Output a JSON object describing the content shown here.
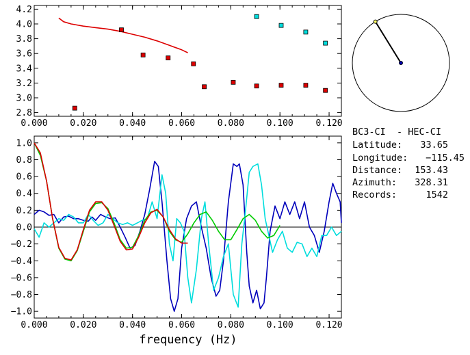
{
  "colors": {
    "red": "#dd0000",
    "blue": "#0000bb",
    "cyan": "#00dddd",
    "green": "#00cc00",
    "marker_red": "#dd0000",
    "marker_cyan": "#00dddd"
  },
  "info": {
    "title": "BC3-CI  - HEC-CI",
    "latitude_label": "Latitude:",
    "latitude_value": "33.65",
    "longitude_label": "Longitude:",
    "longitude_value": "−115.45",
    "distance_label": "Distance:",
    "distance_value": "153.43",
    "azimuth_label": "Azimuth:",
    "azimuth_value": "328.31",
    "records_label": "Records:",
    "records_value": "1542"
  },
  "compass": {
    "azimuth_deg": 328.31
  },
  "chart_data": [
    {
      "type": "scatter",
      "xlim": [
        0.0,
        0.125
      ],
      "ylim": [
        2.75,
        4.25
      ],
      "xticks": [
        "0.000",
        "0.020",
        "0.040",
        "0.060",
        "0.080",
        "0.100",
        "0.120"
      ],
      "xtick_values": [
        0.0,
        0.02,
        0.04,
        0.06,
        0.08,
        0.1,
        0.12
      ],
      "yticks": [
        "2.8",
        "3.0",
        "3.2",
        "3.4",
        "3.6",
        "3.8",
        "4.0",
        "4.2"
      ],
      "ytick_values": [
        2.8,
        3.0,
        3.2,
        3.4,
        3.6,
        3.8,
        4.0,
        4.2
      ],
      "line": {
        "color": "red",
        "x": [
          0.01,
          0.012,
          0.015,
          0.02,
          0.025,
          0.03,
          0.035,
          0.04,
          0.045,
          0.05,
          0.055,
          0.06,
          0.0625
        ],
        "y": [
          4.08,
          4.03,
          4.0,
          3.97,
          3.95,
          3.93,
          3.9,
          3.86,
          3.82,
          3.77,
          3.71,
          3.65,
          3.61
        ]
      },
      "red_points": {
        "x": [
          0.0165,
          0.0355,
          0.0443,
          0.0545,
          0.0648,
          0.0692,
          0.081,
          0.0905,
          0.1005,
          0.1105,
          0.1185
        ],
        "y": [
          2.86,
          3.92,
          3.58,
          3.54,
          3.46,
          3.15,
          3.21,
          3.16,
          3.17,
          3.17,
          3.1
        ]
      },
      "cyan_points": {
        "x": [
          0.0905,
          0.1005,
          0.1105,
          0.1185
        ],
        "y": [
          4.1,
          3.98,
          3.89,
          3.74
        ]
      }
    },
    {
      "type": "line",
      "xlim": [
        0.0,
        0.125
      ],
      "ylim": [
        -1.08,
        1.08
      ],
      "xlabel": "frequency (Hz)",
      "xticks": [
        "0.000",
        "0.020",
        "0.040",
        "0.060",
        "0.080",
        "0.100",
        "0.120"
      ],
      "xtick_values": [
        0.0,
        0.02,
        0.04,
        0.06,
        0.08,
        0.1,
        0.12
      ],
      "yticks": [
        "1.0",
        "0.8",
        "0.6",
        "0.4",
        "0.2",
        "0.0",
        "−0.2",
        "−0.4",
        "−0.6",
        "−0.8",
        "−1.0"
      ],
      "ytick_values": [
        1.0,
        0.8,
        0.6,
        0.4,
        0.2,
        0.0,
        -0.2,
        -0.4,
        -0.6,
        -0.8,
        -1.0
      ],
      "series": [
        {
          "color": "blue",
          "x": [
            0.0,
            0.002,
            0.004,
            0.006,
            0.008,
            0.01,
            0.012,
            0.014,
            0.016,
            0.018,
            0.02,
            0.022,
            0.0235,
            0.025,
            0.027,
            0.029,
            0.031,
            0.033,
            0.035,
            0.037,
            0.039,
            0.041,
            0.043,
            0.045,
            0.047,
            0.049,
            0.0505,
            0.052,
            0.054,
            0.0555,
            0.057,
            0.0585,
            0.06,
            0.062,
            0.064,
            0.066,
            0.068,
            0.07,
            0.072,
            0.074,
            0.0755,
            0.077,
            0.079,
            0.081,
            0.0825,
            0.0835,
            0.085,
            0.0865,
            0.0875,
            0.089,
            0.0905,
            0.092,
            0.0935,
            0.0945,
            0.096,
            0.098,
            0.1,
            0.102,
            0.104,
            0.106,
            0.108,
            0.11,
            0.112,
            0.114,
            0.116,
            0.118,
            0.12,
            0.1215,
            0.123,
            0.1245,
            0.125
          ],
          "y": [
            0.15,
            0.2,
            0.18,
            0.14,
            0.15,
            0.05,
            0.12,
            0.13,
            0.1,
            0.1,
            0.08,
            0.07,
            0.12,
            0.08,
            0.15,
            0.12,
            0.1,
            0.11,
            0.0,
            -0.12,
            -0.25,
            -0.22,
            -0.05,
            0.15,
            0.45,
            0.78,
            0.72,
            0.3,
            -0.4,
            -0.85,
            -1.0,
            -0.85,
            -0.25,
            0.1,
            0.25,
            0.3,
            0.0,
            -0.25,
            -0.6,
            -0.82,
            -0.75,
            -0.4,
            0.3,
            0.75,
            0.72,
            0.75,
            0.5,
            -0.3,
            -0.7,
            -0.9,
            -0.75,
            -0.97,
            -0.9,
            -0.6,
            -0.05,
            0.25,
            0.1,
            0.3,
            0.15,
            0.3,
            0.1,
            0.3,
            0.0,
            -0.1,
            -0.3,
            -0.05,
            0.3,
            0.52,
            0.4,
            0.3,
            0.05
          ]
        },
        {
          "color": "cyan",
          "x": [
            0.0,
            0.002,
            0.004,
            0.006,
            0.008,
            0.01,
            0.012,
            0.014,
            0.016,
            0.018,
            0.02,
            0.022,
            0.024,
            0.026,
            0.028,
            0.03,
            0.032,
            0.034,
            0.036,
            0.038,
            0.04,
            0.042,
            0.044,
            0.046,
            0.048,
            0.05,
            0.052,
            0.0535,
            0.055,
            0.0565,
            0.058,
            0.0595,
            0.061,
            0.0625,
            0.064,
            0.066,
            0.068,
            0.0695,
            0.071,
            0.073,
            0.075,
            0.077,
            0.079,
            0.081,
            0.083,
            0.0845,
            0.086,
            0.0875,
            0.089,
            0.091,
            0.0925,
            0.094,
            0.0955,
            0.097,
            0.099,
            0.101,
            0.103,
            0.105,
            0.107,
            0.109,
            0.111,
            0.113,
            0.115,
            0.117,
            0.119,
            0.121,
            0.123,
            0.125
          ],
          "y": [
            -0.02,
            -0.12,
            0.05,
            0.0,
            0.05,
            0.1,
            0.08,
            0.15,
            0.12,
            0.05,
            0.05,
            0.15,
            0.08,
            0.02,
            0.05,
            0.15,
            0.1,
            0.05,
            0.03,
            0.05,
            0.02,
            0.05,
            0.08,
            0.1,
            0.3,
            0.1,
            0.62,
            0.4,
            -0.2,
            -0.4,
            0.1,
            0.05,
            -0.05,
            -0.6,
            -0.9,
            -0.5,
            0.1,
            0.3,
            -0.2,
            -0.75,
            -0.6,
            -0.35,
            -0.2,
            -0.8,
            -0.95,
            -0.2,
            0.2,
            0.65,
            0.72,
            0.75,
            0.5,
            0.1,
            -0.1,
            -0.3,
            -0.15,
            -0.05,
            -0.25,
            -0.3,
            -0.18,
            -0.2,
            -0.35,
            -0.25,
            -0.35,
            -0.1,
            -0.1,
            0.0,
            -0.1,
            -0.05
          ]
        },
        {
          "color": "green",
          "x": [
            0.0,
            0.0025,
            0.005,
            0.0075,
            0.01,
            0.0125,
            0.015,
            0.0175,
            0.02,
            0.0225,
            0.025,
            0.0275,
            0.03,
            0.0325,
            0.035,
            0.0375,
            0.04,
            0.0425,
            0.045,
            0.0475,
            0.05,
            0.0525,
            0.055,
            0.0575,
            0.06,
            0.0625,
            0.065,
            0.0675,
            0.07,
            0.0725,
            0.075,
            0.0775,
            0.08,
            0.0825,
            0.085,
            0.0875,
            0.09,
            0.0925,
            0.095,
            0.0975,
            0.1
          ],
          "y": [
            1.0,
            0.85,
            0.55,
            0.1,
            -0.25,
            -0.38,
            -0.4,
            -0.28,
            -0.05,
            0.18,
            0.28,
            0.29,
            0.22,
            0.05,
            -0.15,
            -0.25,
            -0.24,
            -0.1,
            0.08,
            0.18,
            0.2,
            0.12,
            -0.05,
            -0.15,
            -0.18,
            -0.08,
            0.05,
            0.15,
            0.18,
            0.08,
            -0.05,
            -0.15,
            -0.15,
            -0.03,
            0.1,
            0.15,
            0.08,
            -0.05,
            -0.13,
            -0.1,
            0.02
          ]
        },
        {
          "color": "red",
          "x": [
            0.0,
            0.0025,
            0.005,
            0.0075,
            0.01,
            0.0125,
            0.015,
            0.0175,
            0.02,
            0.0225,
            0.025,
            0.0275,
            0.03,
            0.0325,
            0.035,
            0.0375,
            0.04,
            0.0425,
            0.045,
            0.0475,
            0.05,
            0.0525,
            0.055,
            0.0575,
            0.06,
            0.0625
          ],
          "y": [
            1.0,
            0.88,
            0.55,
            0.1,
            -0.24,
            -0.37,
            -0.39,
            -0.27,
            -0.03,
            0.2,
            0.3,
            0.3,
            0.2,
            0.02,
            -0.17,
            -0.27,
            -0.26,
            -0.12,
            0.05,
            0.17,
            0.21,
            0.12,
            -0.03,
            -0.14,
            -0.19,
            -0.19
          ]
        }
      ]
    }
  ]
}
